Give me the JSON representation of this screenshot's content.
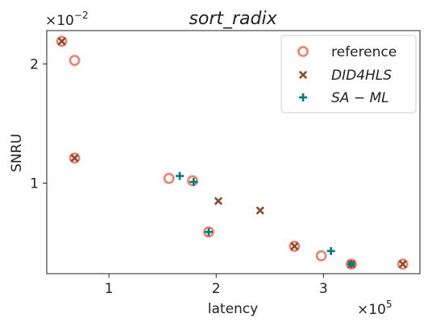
{
  "chart_data": {
    "type": "scatter",
    "title": "sort_radix",
    "xlabel": "latency",
    "ylabel": "SNRU",
    "x_multiplier_label": "×10",
    "x_multiplier_exp": "5",
    "y_multiplier_label": "×10",
    "y_multiplier_exp": "−2",
    "xlim": [
      42000,
      390000
    ],
    "ylim": [
      0.0024,
      0.0228
    ],
    "x_ticks": [
      100000,
      200000,
      300000
    ],
    "x_tick_labels": [
      "1",
      "2",
      "3"
    ],
    "y_ticks": [
      0.01,
      0.02
    ],
    "y_tick_labels": [
      "1",
      "2"
    ],
    "grid": false,
    "legend_position": "top-right",
    "series": [
      {
        "name": "reference",
        "marker": "circle-open",
        "color": "#f08070",
        "points": [
          [
            56000,
            0.0219
          ],
          [
            68000,
            0.0203
          ],
          [
            68000,
            0.0121
          ],
          [
            156000,
            0.0104
          ],
          [
            178000,
            0.0102
          ],
          [
            193000,
            0.0059
          ],
          [
            273000,
            0.0047
          ],
          [
            298000,
            0.0039
          ],
          [
            326000,
            0.0032
          ],
          [
            374000,
            0.0032
          ]
        ]
      },
      {
        "name": "DID4HLS",
        "marker": "x",
        "color": "#8b4a2b",
        "points": [
          [
            56000,
            0.0219
          ],
          [
            68000,
            0.0121
          ],
          [
            202000,
            0.0085
          ],
          [
            241000,
            0.0077
          ],
          [
            273000,
            0.0047
          ],
          [
            326000,
            0.0032
          ],
          [
            374000,
            0.0032
          ]
        ]
      },
      {
        "name": "SA-ML",
        "marker": "plus",
        "color": "#007a7a",
        "points": [
          [
            166000,
            0.0106
          ],
          [
            179000,
            0.0101
          ],
          [
            193000,
            0.0059
          ],
          [
            307000,
            0.0043
          ],
          [
            326000,
            0.0032
          ]
        ]
      }
    ]
  },
  "legend": {
    "items": [
      {
        "label": "reference"
      },
      {
        "label": "DID4HLS"
      },
      {
        "label": "SA − ML"
      }
    ]
  }
}
